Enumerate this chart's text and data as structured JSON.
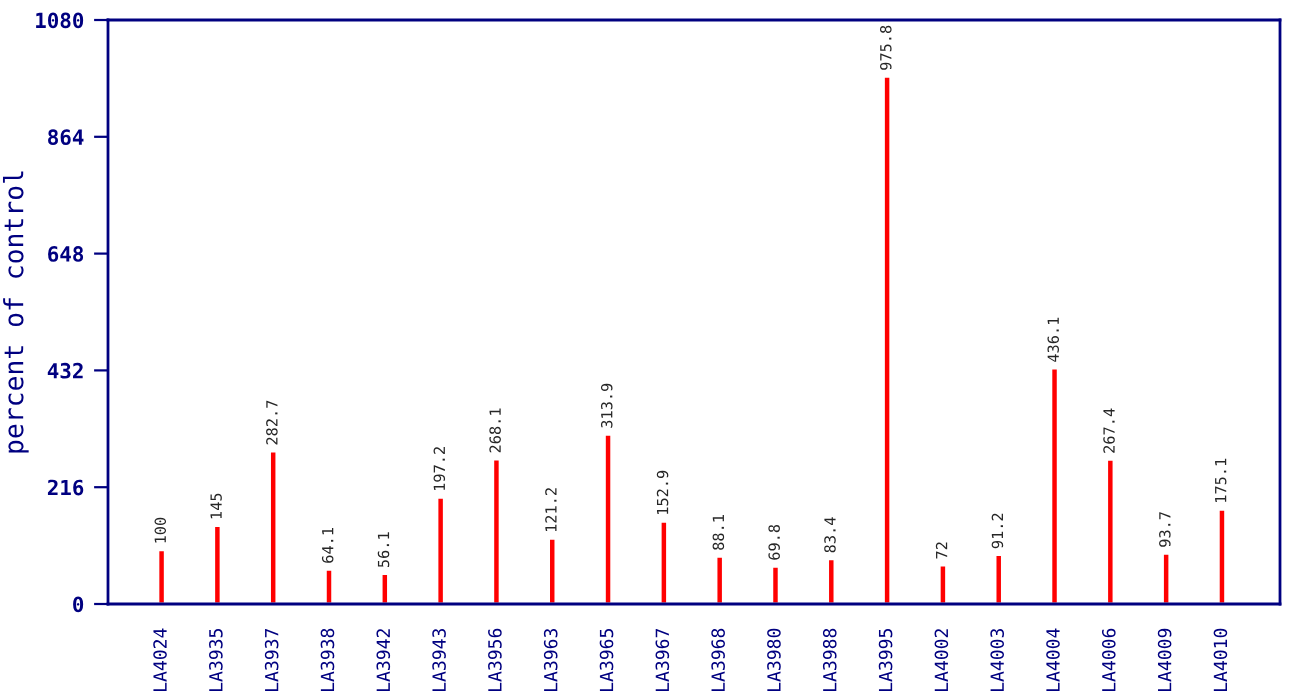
{
  "chart_data": {
    "type": "bar",
    "ylabel": "percent of control",
    "categories": [
      "LA4024",
      "LA3935",
      "LA3937",
      "LA3938",
      "LA3942",
      "LA3943",
      "LA3956",
      "LA3963",
      "LA3965",
      "LA3967",
      "LA3968",
      "LA3980",
      "LA3988",
      "LA3995",
      "LA4002",
      "LA4003",
      "LA4004",
      "LA4006",
      "LA4009",
      "LA4010"
    ],
    "values": [
      100,
      145,
      282.7,
      64.1,
      56.1,
      197.2,
      268.1,
      121.2,
      313.9,
      152.9,
      88.1,
      69.8,
      83.4,
      975.8,
      72,
      91.2,
      436.1,
      267.4,
      93.7,
      175.1
    ],
    "color": "#ff0000",
    "ylim": [
      0,
      1080
    ],
    "yticks": [
      0,
      216,
      432,
      648,
      864,
      1080
    ],
    "data_labels": true,
    "grid": false,
    "legend": false
  }
}
